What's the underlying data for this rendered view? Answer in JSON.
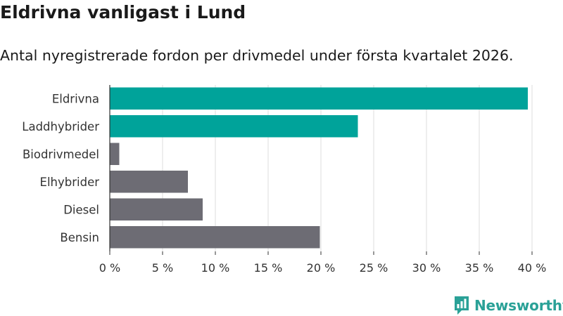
{
  "header": {
    "title": "Eldrivna vanligast i Lund",
    "subtitle": "Antal nyregistrerade fordon per drivmedel under första kvartalet 2026."
  },
  "chart_data": {
    "type": "bar",
    "orientation": "horizontal",
    "title": "Eldrivna vanligast i Lund",
    "subtitle": "Antal nyregistrerade fordon per drivmedel under första kvartalet 2026.",
    "categories": [
      "Eldrivna",
      "Laddhybrider",
      "Biodrivmedel",
      "Elhybrider",
      "Diesel",
      "Bensin"
    ],
    "values": [
      39.6,
      23.5,
      0.9,
      7.4,
      8.8,
      19.9
    ],
    "unit": "%",
    "xlim": [
      0,
      40
    ],
    "xticks": [
      0,
      5,
      10,
      15,
      20,
      25,
      30,
      35,
      40
    ],
    "xtick_labels": [
      "0 %",
      "5 %",
      "10 %",
      "15 %",
      "20 %",
      "25 %",
      "30 %",
      "35 %",
      "40 %"
    ],
    "bar_colors": [
      "#00a39a",
      "#00a39a",
      "#6d6c74",
      "#6d6c74",
      "#6d6c74",
      "#6d6c74"
    ],
    "grid": true,
    "xlabel": "",
    "ylabel": ""
  },
  "branding": {
    "logo_text": "Newsworthy",
    "logo_color": "#2aa197"
  }
}
